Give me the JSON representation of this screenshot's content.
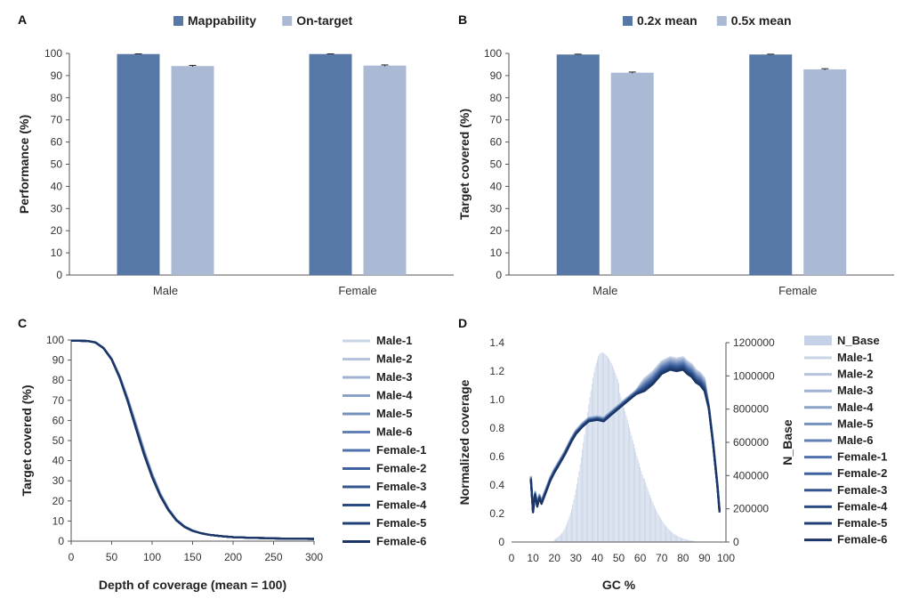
{
  "panels": {
    "a": "A",
    "b": "B",
    "c": "C",
    "d": "D"
  },
  "chart_data": [
    {
      "id": "A",
      "type": "bar",
      "categories": [
        "Male",
        "Female"
      ],
      "series": [
        {
          "name": "Mappability",
          "values": [
            99.7,
            99.7
          ],
          "err": [
            0.1,
            0.1
          ],
          "color": "#5777a6"
        },
        {
          "name": "On-target",
          "values": [
            94.3,
            94.5
          ],
          "err": [
            0.3,
            0.3
          ],
          "color": "#abbad4"
        }
      ],
      "ylabel": "Performance (%)",
      "ylim": [
        0,
        100
      ],
      "yticks": [
        0,
        10,
        20,
        30,
        40,
        50,
        60,
        70,
        80,
        90,
        100
      ],
      "legend": "top"
    },
    {
      "id": "B",
      "type": "bar",
      "categories": [
        "Male",
        "Female"
      ],
      "series": [
        {
          "name": "0.2x mean",
          "values": [
            99.5,
            99.5
          ],
          "err": [
            0.15,
            0.15
          ],
          "color": "#5777a6"
        },
        {
          "name": "0.5x mean",
          "values": [
            91.3,
            92.8
          ],
          "err": [
            0.3,
            0.3
          ],
          "color": "#abbad4"
        }
      ],
      "ylabel": "Target covered (%)",
      "ylim": [
        0,
        100
      ],
      "yticks": [
        0,
        10,
        20,
        30,
        40,
        50,
        60,
        70,
        80,
        90,
        100
      ],
      "legend": "top"
    },
    {
      "id": "C",
      "type": "line",
      "xlabel": "Depth of coverage (mean = 100)",
      "ylabel": "Target covered (%)",
      "xlim": [
        0,
        300
      ],
      "ylim": [
        0,
        100
      ],
      "xticks": [
        0,
        50,
        100,
        150,
        200,
        250,
        300
      ],
      "yticks": [
        0,
        10,
        20,
        30,
        40,
        50,
        60,
        70,
        80,
        90,
        100
      ],
      "legend": "right",
      "x": [
        0,
        10,
        20,
        30,
        40,
        50,
        60,
        70,
        80,
        90,
        100,
        110,
        120,
        130,
        140,
        150,
        160,
        170,
        180,
        190,
        200,
        220,
        240,
        260,
        280,
        300
      ],
      "base_values": [
        99.6,
        99.6,
        99.5,
        98.8,
        96.0,
        90.5,
        81.5,
        70.0,
        57.0,
        44.0,
        32.5,
        23.0,
        15.8,
        10.5,
        7.2,
        5.2,
        4.0,
        3.2,
        2.7,
        2.3,
        2.0,
        1.7,
        1.5,
        1.3,
        1.2,
        1.1
      ],
      "series": [
        {
          "name": "Male-1",
          "color": "#c9d4e6",
          "shift": 2.0
        },
        {
          "name": "Male-2",
          "color": "#b5c3dc",
          "shift": 1.6
        },
        {
          "name": "Male-3",
          "color": "#a0b2d2",
          "shift": 1.2
        },
        {
          "name": "Male-4",
          "color": "#8ca2c8",
          "shift": 0.8
        },
        {
          "name": "Male-5",
          "color": "#7791bf",
          "shift": 0.4
        },
        {
          "name": "Male-6",
          "color": "#6281b6",
          "shift": 0.0
        },
        {
          "name": "Female-1",
          "color": "#4f71ac",
          "shift": -0.2
        },
        {
          "name": "Female-2",
          "color": "#3f619d",
          "shift": -0.4
        },
        {
          "name": "Female-3",
          "color": "#34568f",
          "shift": -0.6
        },
        {
          "name": "Female-4",
          "color": "#2a4b82",
          "shift": -0.8
        },
        {
          "name": "Female-5",
          "color": "#213f74",
          "shift": -1.0
        },
        {
          "name": "Female-6",
          "color": "#1b3566",
          "shift": -1.2
        }
      ]
    },
    {
      "id": "D",
      "type": "line",
      "xlabel": "GC %",
      "ylabel": "Normalized coverage",
      "y2label": "N_Base",
      "xlim": [
        0,
        100
      ],
      "ylim": [
        0,
        1.4
      ],
      "y2lim": [
        0,
        1200000
      ],
      "xticks": [
        0,
        10,
        20,
        30,
        40,
        50,
        60,
        70,
        80,
        90,
        100
      ],
      "yticks": [
        0,
        0.2,
        0.4,
        0.6,
        0.8,
        1.0,
        1.2,
        1.4
      ],
      "y2ticks": [
        0,
        200000,
        400000,
        600000,
        800000,
        1000000,
        1200000
      ],
      "legend": "right",
      "bars": {
        "name": "N_Base",
        "color": "#c5d1e6",
        "x_range": [
          20,
          85
        ],
        "peak_x": 42,
        "peak_value": 1140000,
        "comment_values": "histogram of number of bases per GC% bin"
      },
      "x": [
        9,
        10,
        11,
        12,
        13,
        14,
        16,
        18,
        20,
        22,
        25,
        28,
        30,
        33,
        36,
        40,
        43,
        46,
        50,
        54,
        58,
        62,
        66,
        70,
        74,
        77,
        80,
        82,
        84,
        86,
        88,
        90,
        92,
        94,
        96,
        97
      ],
      "base_values": [
        0.45,
        0.22,
        0.34,
        0.26,
        0.32,
        0.28,
        0.36,
        0.44,
        0.5,
        0.55,
        0.63,
        0.72,
        0.77,
        0.82,
        0.86,
        0.87,
        0.86,
        0.9,
        0.95,
        1.0,
        1.05,
        1.1,
        1.15,
        1.22,
        1.25,
        1.24,
        1.25,
        1.22,
        1.2,
        1.16,
        1.14,
        1.1,
        0.95,
        0.7,
        0.4,
        0.22
      ],
      "series": [
        {
          "name": "Male-1",
          "color": "#c9d4e6",
          "shift": 0.03
        },
        {
          "name": "Male-2",
          "color": "#b5c3dc",
          "shift": 0.025
        },
        {
          "name": "Male-3",
          "color": "#a0b2d2",
          "shift": 0.02
        },
        {
          "name": "Male-4",
          "color": "#8ca2c8",
          "shift": 0.015
        },
        {
          "name": "Male-5",
          "color": "#7791bf",
          "shift": 0.01
        },
        {
          "name": "Male-6",
          "color": "#6281b6",
          "shift": 0.005
        },
        {
          "name": "Female-1",
          "color": "#4f71ac",
          "shift": 0.0
        },
        {
          "name": "Female-2",
          "color": "#3f619d",
          "shift": -0.005
        },
        {
          "name": "Female-3",
          "color": "#34568f",
          "shift": -0.01
        },
        {
          "name": "Female-4",
          "color": "#2a4b82",
          "shift": -0.015
        },
        {
          "name": "Female-5",
          "color": "#213f74",
          "shift": -0.02
        },
        {
          "name": "Female-6",
          "color": "#1b3566",
          "shift": -0.025
        }
      ]
    }
  ]
}
